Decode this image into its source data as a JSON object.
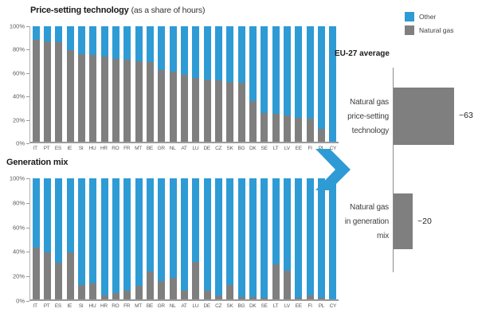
{
  "colors": {
    "other_blue": "#2e9bd5",
    "natural_gas_gray": "#7f7f7f",
    "axis": "#9a9a9a",
    "tick_label": "#595959"
  },
  "legend": {
    "items": [
      {
        "label": "Other",
        "color": "#2e9bd5"
      },
      {
        "label": "Natural gas",
        "color": "#7f7f7f"
      }
    ]
  },
  "chart_data": [
    {
      "id": "price_setting_technology",
      "type": "bar",
      "stacked": true,
      "title": "Price-setting technology (as a share of hours)",
      "title_bold": "Price-setting technology",
      "title_note": "(as a share of hours)",
      "unit": "%",
      "ylim": [
        0,
        100
      ],
      "y_ticks": [
        "100%",
        "80%",
        "60%",
        "40%",
        "20%",
        "0%"
      ],
      "legend_position": "top-right",
      "categories": [
        "IT",
        "PT",
        "ES",
        "IE",
        "SI",
        "HU",
        "HR",
        "RO",
        "FR",
        "MT",
        "BE",
        "GR",
        "NL",
        "AT",
        "LU",
        "DE",
        "CZ",
        "SK",
        "BG",
        "DK",
        "SE",
        "LT",
        "LV",
        "EE",
        "FI",
        "PL",
        "CY"
      ],
      "series": [
        {
          "name": "Natural gas",
          "color": "#7f7f7f",
          "values": [
            88,
            87,
            86,
            79,
            76,
            75,
            74,
            72,
            71,
            70,
            69,
            62,
            61,
            58,
            55,
            54,
            53,
            52,
            51,
            35,
            25,
            24,
            23,
            21,
            20,
            11,
            0
          ]
        },
        {
          "name": "Other",
          "color": "#2e9bd5",
          "values": [
            12,
            13,
            14,
            21,
            24,
            25,
            26,
            28,
            29,
            30,
            31,
            38,
            39,
            42,
            45,
            46,
            47,
            48,
            49,
            65,
            75,
            76,
            77,
            79,
            80,
            89,
            100
          ]
        }
      ]
    },
    {
      "id": "generation_mix",
      "type": "bar",
      "stacked": true,
      "title": "Generation mix",
      "unit": "%",
      "ylim": [
        0,
        100
      ],
      "y_ticks": [
        "100%",
        "80%",
        "60%",
        "40%",
        "20%",
        "0%"
      ],
      "categories": [
        "IT",
        "PT",
        "ES",
        "IE",
        "SI",
        "HU",
        "HR",
        "RO",
        "FR",
        "MT",
        "BE",
        "GR",
        "NL",
        "AT",
        "LU",
        "DE",
        "CZ",
        "SK",
        "BG",
        "DK",
        "SE",
        "LT",
        "LV",
        "EE",
        "FI",
        "PL",
        "CY"
      ],
      "series": [
        {
          "name": "Natural gas",
          "color": "#7f7f7f",
          "values": [
            43,
            39,
            30,
            39,
            12,
            13,
            3,
            5,
            7,
            11,
            23,
            15,
            18,
            7,
            31,
            7,
            3,
            12,
            2,
            2,
            1,
            29,
            24,
            1,
            3,
            1,
            0
          ]
        },
        {
          "name": "Other",
          "color": "#2e9bd5",
          "values": [
            57,
            61,
            70,
            61,
            88,
            87,
            97,
            95,
            93,
            89,
            77,
            85,
            82,
            93,
            69,
            93,
            97,
            88,
            98,
            98,
            99,
            71,
            76,
            99,
            97,
            99,
            100
          ]
        }
      ]
    },
    {
      "id": "eu27_average",
      "type": "bar",
      "orientation": "horizontal",
      "title": "EU-27 average",
      "bar_color": "#7f7f7f",
      "bars": [
        {
          "label": "Natural gas price-setting technology",
          "label_lines": [
            "Natural gas",
            "price-setting",
            "technology"
          ],
          "value": 63,
          "display": "~63"
        },
        {
          "label": "Natural gas in generation mix",
          "label_lines": [
            "Natural gas",
            "in generation",
            "mix"
          ],
          "value": 20,
          "display": "~20"
        }
      ]
    }
  ],
  "arrow": {
    "name": "right-chevron",
    "color": "#2e9bd5"
  }
}
